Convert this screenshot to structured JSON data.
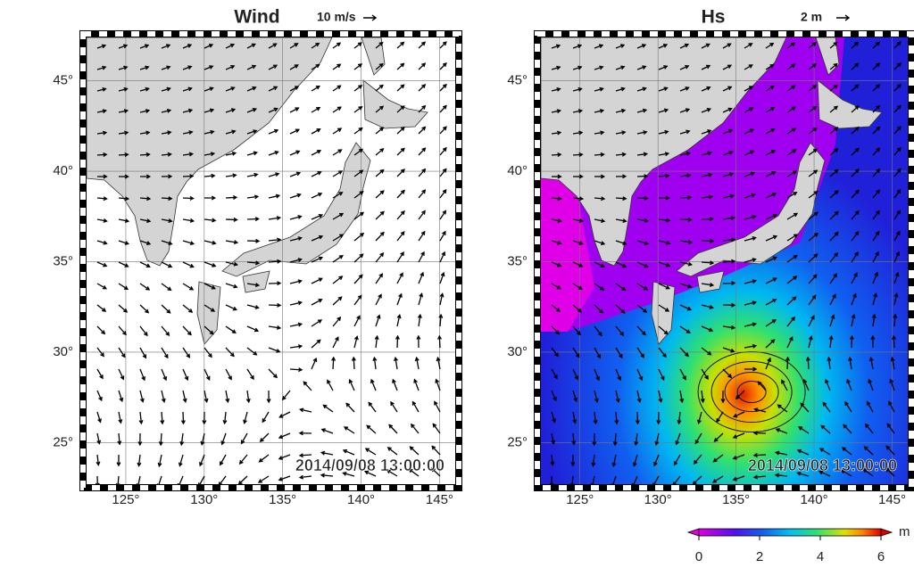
{
  "panels": [
    {
      "title": "Wind",
      "reference_label": "10 m/s",
      "timestamp": "2014/09/08 13:00:00",
      "xlim": [
        122.5,
        146
      ],
      "ylim": [
        22.7,
        47.4
      ],
      "xticks": [
        {
          "value": 125,
          "label": "125°"
        },
        {
          "value": 130,
          "label": "130°"
        },
        {
          "value": 135,
          "label": "135°"
        },
        {
          "value": 140,
          "label": "140°"
        },
        {
          "value": 145,
          "label": "145°"
        }
      ],
      "yticks": [
        {
          "value": 25,
          "label": "25°"
        },
        {
          "value": 30,
          "label": "30°"
        },
        {
          "value": 35,
          "label": "35°"
        },
        {
          "value": 40,
          "label": "40°"
        },
        {
          "value": 45,
          "label": "45°"
        }
      ]
    },
    {
      "title": "Hs",
      "reference_label": "2 m",
      "timestamp": "2014/09/08 13:00:00",
      "xlim": [
        122.5,
        146
      ],
      "ylim": [
        22.7,
        47.4
      ],
      "xticks": [
        {
          "value": 125,
          "label": "125°"
        },
        {
          "value": 130,
          "label": "130°"
        },
        {
          "value": 135,
          "label": "135°"
        },
        {
          "value": 140,
          "label": "140°"
        },
        {
          "value": 145,
          "label": "145°"
        }
      ],
      "yticks": [
        {
          "value": 25,
          "label": "25°"
        },
        {
          "value": 30,
          "label": "30°"
        },
        {
          "value": 35,
          "label": "35°"
        },
        {
          "value": 40,
          "label": "40°"
        },
        {
          "value": 45,
          "label": "45°"
        }
      ]
    }
  ],
  "colorbar": {
    "lim": [
      0,
      6
    ],
    "ticks": [
      0,
      2,
      4,
      6
    ],
    "unit": "m"
  }
}
